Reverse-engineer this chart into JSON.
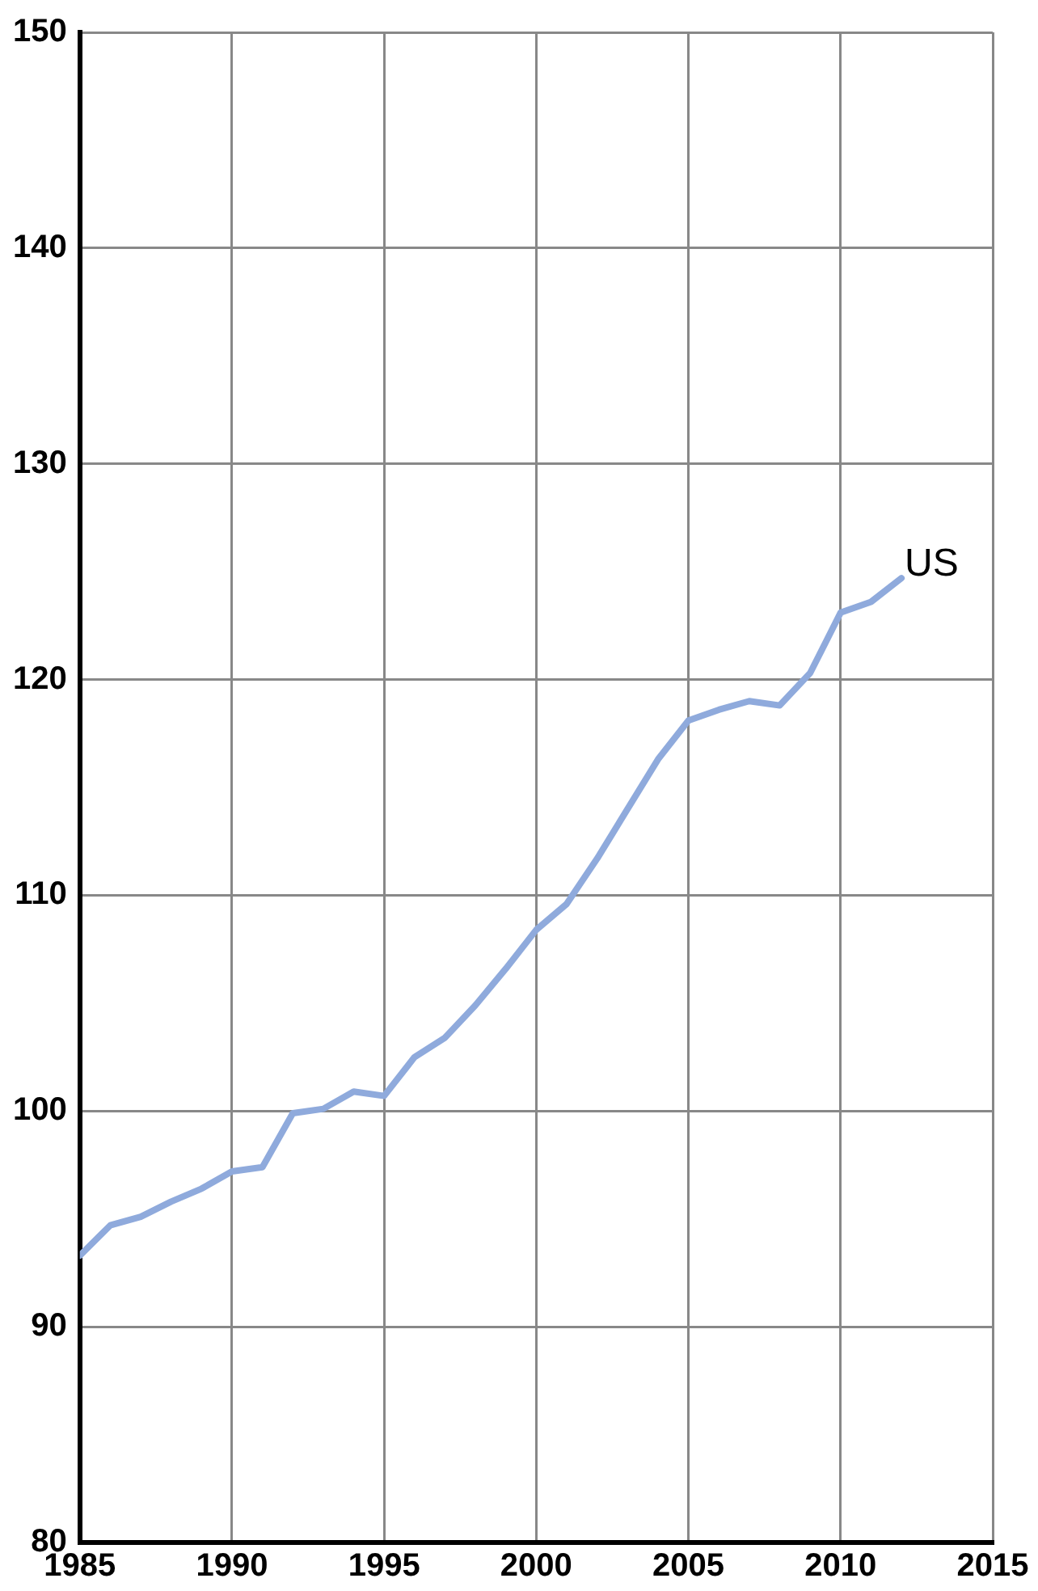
{
  "chart_data": {
    "type": "line",
    "x": [
      1985,
      1986,
      1987,
      1988,
      1989,
      1990,
      1991,
      1992,
      1993,
      1994,
      1995,
      1996,
      1997,
      1998,
      1999,
      2000,
      2001,
      2002,
      2003,
      2004,
      2005,
      2006,
      2007,
      2008,
      2009,
      2010,
      2011,
      2012
    ],
    "series": [
      {
        "name": "US",
        "color": "#8faadc",
        "values": [
          93.3,
          94.7,
          95.1,
          95.8,
          96.4,
          97.2,
          97.4,
          99.9,
          100.1,
          100.9,
          100.7,
          102.5,
          103.4,
          104.9,
          106.6,
          108.4,
          109.6,
          111.7,
          114.0,
          116.3,
          118.1,
          118.6,
          119.0,
          118.8,
          120.3,
          123.1,
          123.6,
          124.7
        ]
      }
    ],
    "xlim": [
      1985,
      2015
    ],
    "xticks": [
      1985,
      1990,
      1995,
      2000,
      2005,
      2010,
      2015
    ],
    "ylim": [
      80,
      150
    ],
    "yticks": [
      80,
      90,
      100,
      110,
      120,
      130,
      140,
      150
    ],
    "grid": true,
    "legend": false,
    "marker": "none",
    "line_style": "solid"
  }
}
